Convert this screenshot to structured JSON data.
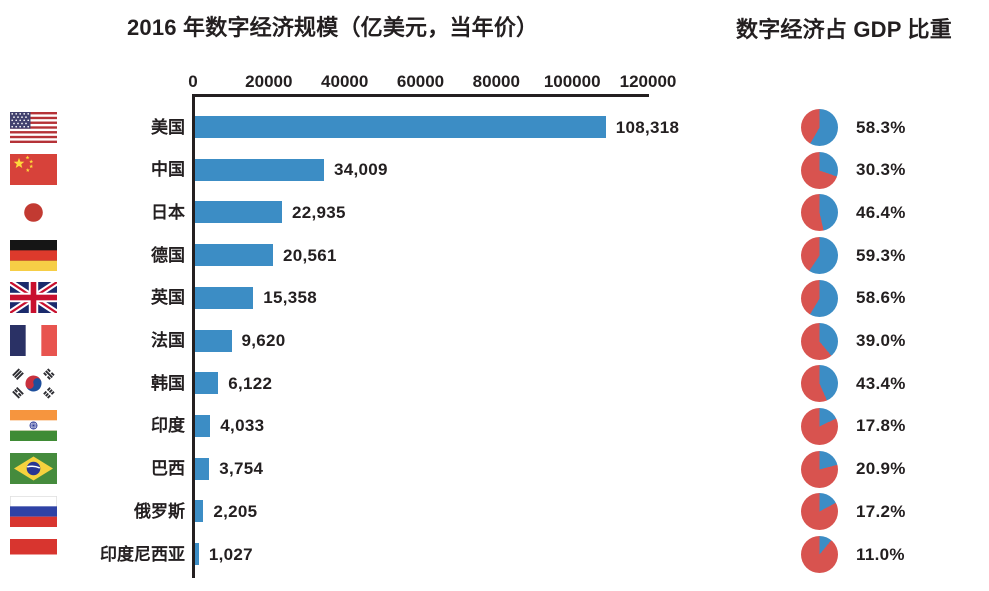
{
  "page": {
    "left_title": "2016 年数字经济规模（亿美元，当年价）",
    "right_title": "数字经济占 GDP 比重"
  },
  "chart_data": [
    {
      "type": "bar",
      "title": "2016 年数字经济规模（亿美元，当年价）",
      "orientation": "horizontal",
      "xlabel": "",
      "ylabel": "",
      "xlim": [
        0,
        120000
      ],
      "x_ticks": [
        0,
        20000,
        40000,
        60000,
        80000,
        100000,
        120000
      ],
      "x_tick_labels": [
        "0",
        "20000",
        "40000",
        "60000",
        "80000",
        "100000",
        "120000"
      ],
      "grid": false,
      "bar_color": "#3C8DC5",
      "categories": [
        "美国",
        "中国",
        "日本",
        "德国",
        "英国",
        "法国",
        "韩国",
        "印度",
        "巴西",
        "俄罗斯",
        "印度尼西亚"
      ],
      "flags": [
        "us",
        "cn",
        "jp",
        "de",
        "gb",
        "fr",
        "kr",
        "in",
        "br",
        "ru",
        "id"
      ],
      "values": [
        108318,
        34009,
        22935,
        20561,
        15358,
        9620,
        6122,
        4033,
        3754,
        2205,
        1027
      ],
      "value_labels": [
        "108,318",
        "34,009",
        "22,935",
        "20,561",
        "15,358",
        "9,620",
        "6,122",
        "4,033",
        "3,754",
        "2,205",
        "1,027"
      ]
    },
    {
      "type": "pie",
      "title": "数字经济占 GDP 比重",
      "legend": false,
      "share_color": "#3C8DC5",
      "remainder_color": "#D8534F",
      "categories": [
        "美国",
        "中国",
        "日本",
        "德国",
        "英国",
        "法国",
        "韩国",
        "印度",
        "巴西",
        "俄罗斯",
        "印度尼西亚"
      ],
      "values": [
        58.3,
        30.3,
        46.4,
        59.3,
        58.6,
        39.0,
        43.4,
        17.8,
        20.9,
        17.2,
        11.0
      ],
      "value_labels": [
        "58.3%",
        "30.3%",
        "46.4%",
        "59.3%",
        "58.6%",
        "39.0%",
        "43.4%",
        "17.8%",
        "20.9%",
        "17.2%",
        "11.0%"
      ]
    }
  ]
}
